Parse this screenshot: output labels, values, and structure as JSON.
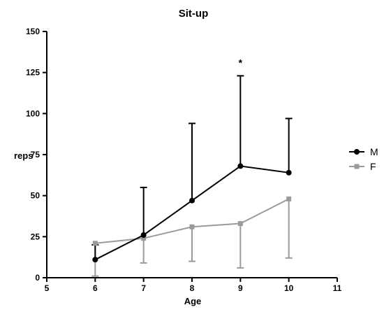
{
  "chart_data": {
    "type": "line",
    "title": "Sit-up",
    "xlabel": "Age",
    "ylabel": "reps",
    "xlim": [
      5,
      11
    ],
    "ylim": [
      0,
      150
    ],
    "x_ticks": [
      5,
      6,
      7,
      8,
      9,
      10,
      11
    ],
    "y_ticks": [
      0,
      25,
      50,
      75,
      100,
      125,
      150
    ],
    "x": [
      6,
      7,
      8,
      9,
      10
    ],
    "series": [
      {
        "name": "M",
        "values": [
          11,
          26,
          47,
          68,
          64
        ],
        "error_upper": [
          20,
          55,
          94,
          123,
          97
        ],
        "color": "#000000",
        "marker": "circle"
      },
      {
        "name": "F",
        "values": [
          21,
          24,
          31,
          33,
          48
        ],
        "error_lower": [
          1,
          9,
          10,
          6,
          12
        ],
        "color": "#9a9a9a",
        "marker": "square"
      }
    ],
    "annotations": [
      {
        "x": 9,
        "text": "*"
      }
    ],
    "legend": "right",
    "grid": false
  }
}
